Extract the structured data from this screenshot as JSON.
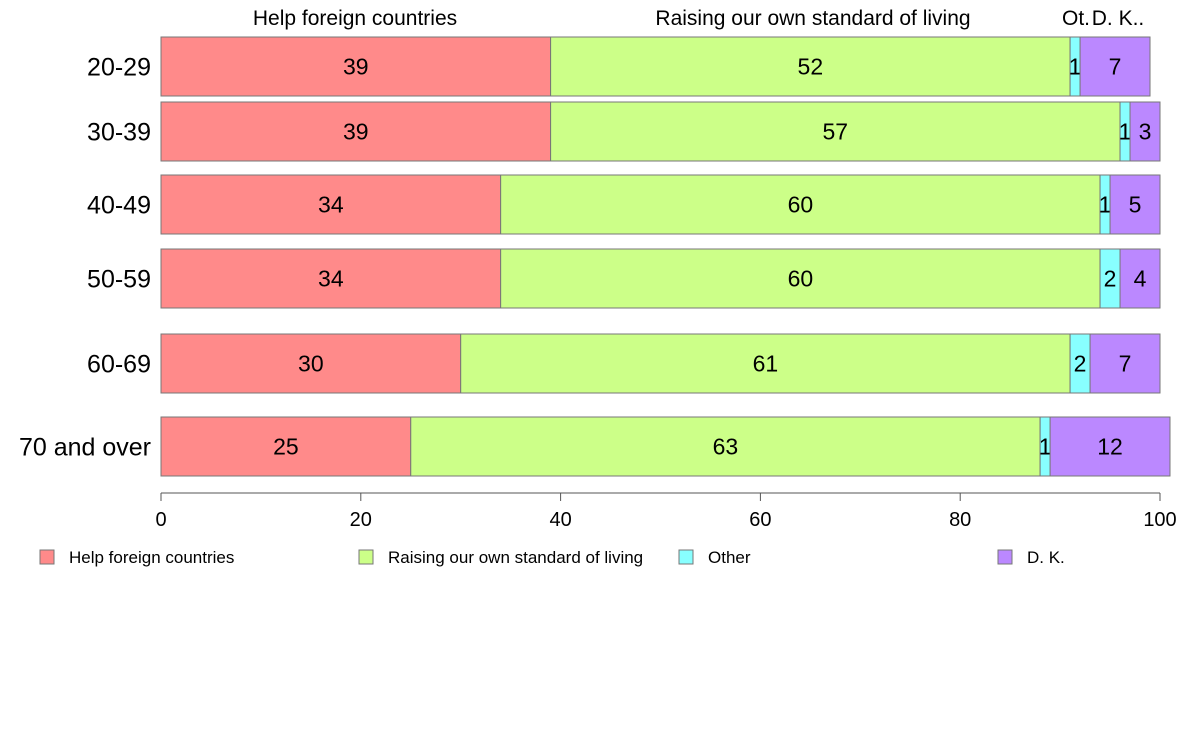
{
  "chart_data": {
    "type": "bar",
    "orientation": "horizontal",
    "stacked": true,
    "categories": [
      "20-29",
      "30-39",
      "40-49",
      "50-59",
      "60-69",
      "70 and over"
    ],
    "series": [
      {
        "name": "Help foreign countries",
        "values": [
          39,
          39,
          34,
          34,
          30,
          25
        ],
        "color": "#FF8A8A"
      },
      {
        "name": "Raising our own standard of living",
        "values": [
          52,
          57,
          60,
          60,
          61,
          63
        ],
        "color": "#CCFF88"
      },
      {
        "name": "Other",
        "values": [
          1,
          1,
          1,
          2,
          2,
          1
        ],
        "color": "#88FFFF"
      },
      {
        "name": "D. K.",
        "values": [
          7,
          3,
          5,
          4,
          7,
          12
        ],
        "color": "#BB88FF"
      }
    ],
    "top_labels": [
      "Help foreign countries",
      "Raising our own standard of living",
      "Ot.",
      "D. K.."
    ],
    "xlim": [
      0,
      100
    ],
    "xticks": [
      0,
      20,
      40,
      60,
      80,
      100
    ],
    "grid": false,
    "legend_position": "bottom"
  }
}
